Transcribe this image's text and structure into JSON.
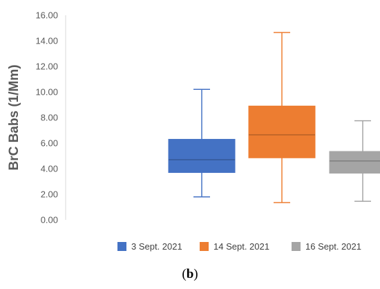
{
  "chart_data": {
    "type": "boxplot",
    "ylabel": "BrC Babs (1/Mm)",
    "ylim": [
      0,
      16
    ],
    "yticks": [
      "0.00",
      "2.00",
      "4.00",
      "6.00",
      "8.00",
      "10.00",
      "12.00",
      "14.00",
      "16.00"
    ],
    "grid": false,
    "legend_position": "bottom",
    "series": [
      {
        "name": "3 Sept. 2021",
        "color": "#4472C4",
        "min": 1.8,
        "q1": 3.7,
        "median": 4.7,
        "q3": 6.3,
        "max": 10.2
      },
      {
        "name": "14 Sept. 2021",
        "color": "#ED7D31",
        "min": 1.35,
        "q1": 4.85,
        "median": 6.65,
        "q3": 8.9,
        "max": 14.65
      },
      {
        "name": "16 Sept. 2021",
        "color": "#A5A5A5",
        "min": 1.45,
        "q1": 3.65,
        "median": 4.6,
        "q3": 5.35,
        "max": 7.75
      }
    ]
  },
  "panel_label": "(b)",
  "panel_parts": {
    "open": "(",
    "letter": "b",
    "close": ")"
  }
}
